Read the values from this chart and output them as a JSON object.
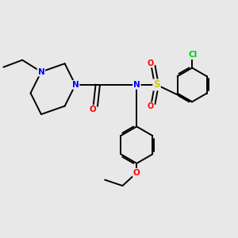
{
  "background_color": "#e8e8e8",
  "bond_color": "#000000",
  "atom_colors": {
    "N": "#0000ff",
    "O": "#ff0000",
    "S": "#cccc00",
    "Cl": "#00cc00",
    "C": "#000000"
  },
  "figsize": [
    3.0,
    3.0
  ],
  "dpi": 100
}
